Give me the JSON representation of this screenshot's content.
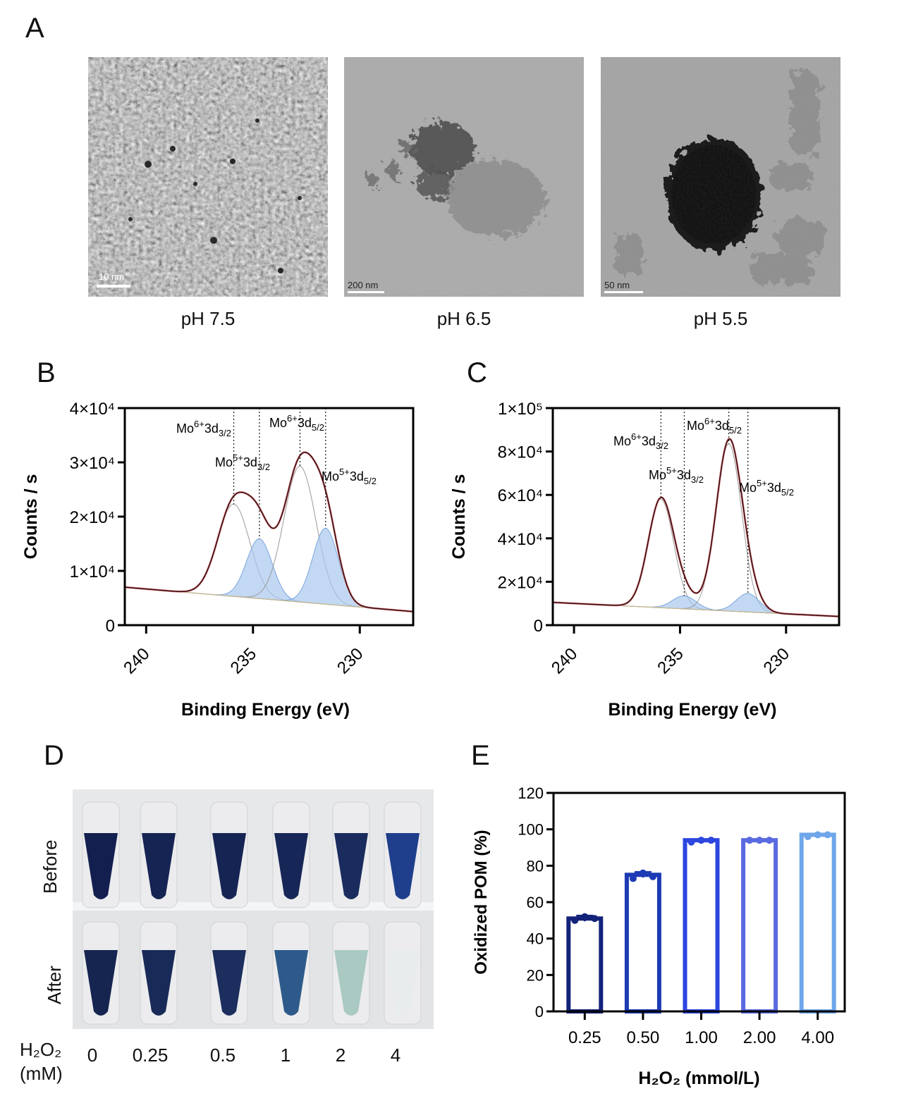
{
  "panels": {
    "A": {
      "letter": "A",
      "images": [
        {
          "caption": "pH 7.5",
          "scale_label": "10 nm"
        },
        {
          "caption": "pH 6.5",
          "scale_label": "200 nm"
        },
        {
          "caption": "pH 5.5",
          "scale_label": "50 nm"
        }
      ]
    },
    "B": {
      "letter": "B"
    },
    "C": {
      "letter": "C"
    },
    "D": {
      "letter": "D",
      "row_labels": [
        "Before",
        "After"
      ],
      "h2o2_label_1": "H₂O₂",
      "h2o2_label_2": "(mM)",
      "concentrations": [
        "0",
        "0.25",
        "0.5",
        "1",
        "2",
        "4"
      ],
      "tube_colors_before": [
        "#13204f",
        "#152453",
        "#152453",
        "#162757",
        "#1a2c5e",
        "#1f3f8c"
      ],
      "tube_colors_after": [
        "#15254f",
        "#182a57",
        "#1b2e5d",
        "#2d5a8a",
        "#a9c9c2",
        "#e8ecec"
      ]
    },
    "E": {
      "letter": "E"
    }
  },
  "chart_data": [
    {
      "id": "B",
      "type": "line",
      "xlabel": "Binding Energy (eV)",
      "ylabel": "Counts / s",
      "xlim": [
        241,
        227.5
      ],
      "xticks": [
        "240",
        "235",
        "230"
      ],
      "ylim": [
        0,
        40000
      ],
      "yticks": [
        "0",
        "1×10⁴",
        "2×10⁴",
        "3×10⁴",
        "4×10⁴"
      ],
      "baseline": {
        "x": [
          241,
          227.5
        ],
        "y": [
          7000,
          2500
        ]
      },
      "peaks": [
        {
          "label": "Mo⁶⁺3d₃/₂",
          "center": 235.9,
          "height": 17000,
          "width": 0.75,
          "dashed": true
        },
        {
          "label": "Mo⁵⁺3d₃/₂",
          "center": 234.7,
          "height": 11000,
          "width": 0.6,
          "fill": true
        },
        {
          "label": "Mo⁶⁺3d₅/₂",
          "center": 232.8,
          "height": 25000,
          "width": 0.75,
          "dashed": true
        },
        {
          "label": "Mo⁵⁺3d₅/₂",
          "center": 231.6,
          "height": 14000,
          "width": 0.6,
          "fill": true
        }
      ],
      "peak_labels": [
        {
          "text": "Mo",
          "sup": "6+",
          "mid": "3d",
          "sub": "3/2"
        },
        {
          "text": "Mo",
          "sup": "5+",
          "mid": "3d",
          "sub": "3/2"
        },
        {
          "text": "Mo",
          "sup": "6+",
          "mid": "3d",
          "sub": "5/2"
        },
        {
          "text": "Mo",
          "sup": "5+",
          "mid": "3d",
          "sub": "5/2"
        }
      ]
    },
    {
      "id": "C",
      "type": "line",
      "xlabel": "Binding Energy (eV)",
      "ylabel": "Counts / s",
      "xlim": [
        241,
        227.5
      ],
      "xticks": [
        "240",
        "235",
        "230"
      ],
      "ylim": [
        0,
        100000
      ],
      "yticks": [
        "0",
        "2×10⁴",
        "4×10⁴",
        "6×10⁴",
        "8×10⁴",
        "1×10⁵"
      ],
      "baseline": {
        "x": [
          241,
          227.5
        ],
        "y": [
          10500,
          4000
        ]
      },
      "peaks": [
        {
          "label": "Mo⁶⁺3d₃/₂",
          "center": 235.9,
          "height": 50000,
          "width": 0.6,
          "dashed": true
        },
        {
          "label": "Mo⁵⁺3d₃/₂",
          "center": 234.8,
          "height": 6000,
          "width": 0.55,
          "fill": true
        },
        {
          "label": "Mo⁶⁺3d₅/₂",
          "center": 232.7,
          "height": 77000,
          "width": 0.6,
          "dashed": true
        },
        {
          "label": "Mo⁵⁺3d₅/₂",
          "center": 231.8,
          "height": 8500,
          "width": 0.55,
          "fill": true
        }
      ],
      "peak_labels": [
        {
          "text": "Mo",
          "sup": "6+",
          "mid": "3d",
          "sub": "3/2"
        },
        {
          "text": "Mo",
          "sup": "5+",
          "mid": "3d",
          "sub": "3/2"
        },
        {
          "text": "Mo",
          "sup": "6+",
          "mid": "3d",
          "sub": "5/2"
        },
        {
          "text": "Mo",
          "sup": "5+",
          "mid": "3d",
          "sub": "5/2"
        }
      ]
    },
    {
      "id": "E",
      "type": "bar",
      "xlabel": "H₂O₂ (mmol/L)",
      "ylabel": "Oxidized POM (%)",
      "ylim": [
        0,
        120
      ],
      "yticks": [
        "0",
        "20",
        "40",
        "60",
        "80",
        "100",
        "120"
      ],
      "categories": [
        "0.25",
        "0.50",
        "1.00",
        "2.00",
        "4.00"
      ],
      "values": [
        51,
        75,
        94,
        94,
        97
      ],
      "errors": [
        1.5,
        1.5,
        0.5,
        0.5,
        0.5
      ],
      "points": [
        [
          50,
          52,
          51
        ],
        [
          73,
          76,
          74
        ],
        [
          93,
          94,
          94
        ],
        [
          94,
          94,
          94
        ],
        [
          96,
          97,
          97
        ]
      ],
      "colors": [
        "#13237a",
        "#1c3bb4",
        "#2c46df",
        "#5a6ae0",
        "#6ea6ea"
      ]
    }
  ]
}
